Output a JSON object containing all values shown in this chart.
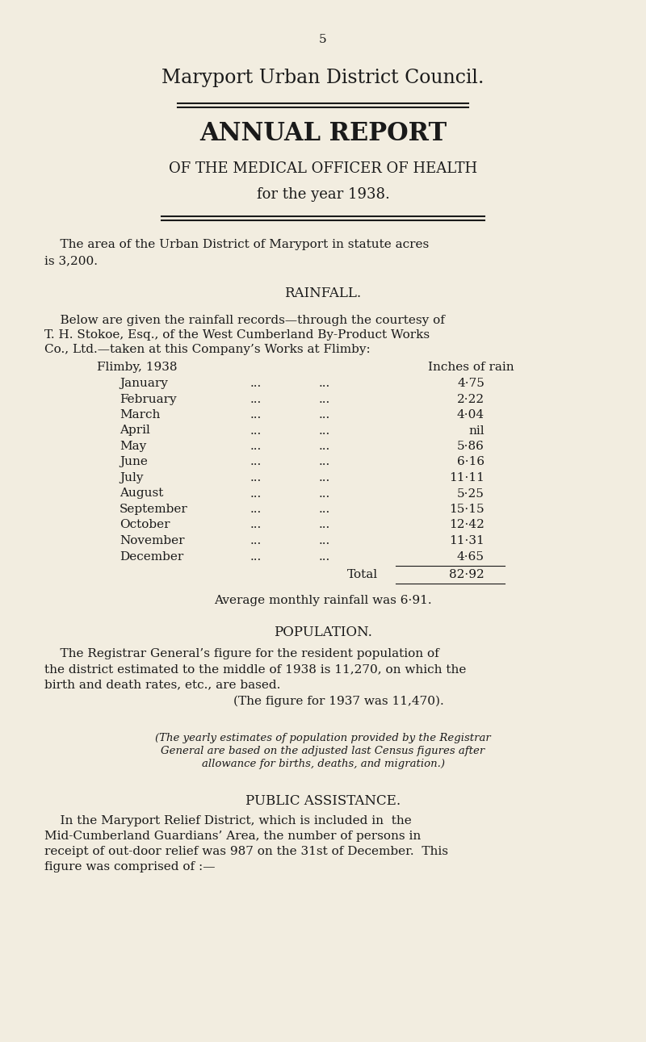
{
  "bg_color": "#f2ede0",
  "page_number": "5",
  "title1": "Maryport Urban District Council.",
  "title2": "ANNUAL REPORT",
  "title3": "OF THE MEDICAL OFFICER OF HEALTH",
  "title4": "for the year 1938.",
  "area_line1": "    The area of the Urban District of Maryport in statute acres",
  "area_line2": "is 3,200.",
  "section1": "RAINFALL.",
  "rainfall_intro1": "    Below are given the rainfall records—through the courtesy of",
  "rainfall_intro2": "T. H. Stokoe, Esq., of the West Cumberland By-Product Works",
  "rainfall_intro3": "Co., Ltd.—taken at this Company’s Works at Flimby:",
  "flimby_header": "Flimby, 1938",
  "inches_header": "Inches of rain",
  "months": [
    "January",
    "February",
    "March",
    "April",
    "May",
    "June",
    "July",
    "August",
    "September",
    "October",
    "November",
    "December"
  ],
  "rainfall_values": [
    "4·75",
    "2·22",
    "4·04",
    "nil",
    "5·86",
    "6·16",
    "11·11",
    "5·25",
    "15·15",
    "12·42",
    "11·31",
    "4·65"
  ],
  "total_label": "Total",
  "total_value": "82·92",
  "avg_text": "Average monthly rainfall was 6·91.",
  "section2": "POPULATION.",
  "pop_text1": "    The Registrar General’s figure for the resident population of",
  "pop_text2": "the district estimated to the middle of 1938 is 11,270, on which the",
  "pop_text3": "birth and death rates, etc., are based.",
  "pop_text4": "        (The figure for 1937 was 11,470).",
  "pop_italic1": "(The yearly estimates of population provided by the Registrar",
  "pop_italic2": "General are based on the adjusted last Census figures after",
  "pop_italic3": "allowance for births, deaths, and migration.)",
  "section3": "PUBLIC ASSISTANCE.",
  "assist_text1": "    In the Maryport Relief District, which is included in  the",
  "assist_text2": "Mid-Cumberland Guardians’ Area, the number of persons in",
  "assist_text3": "receipt of out-door relief was 987 on the 31st of December.  This",
  "assist_text4": "figure was comprised of :—"
}
